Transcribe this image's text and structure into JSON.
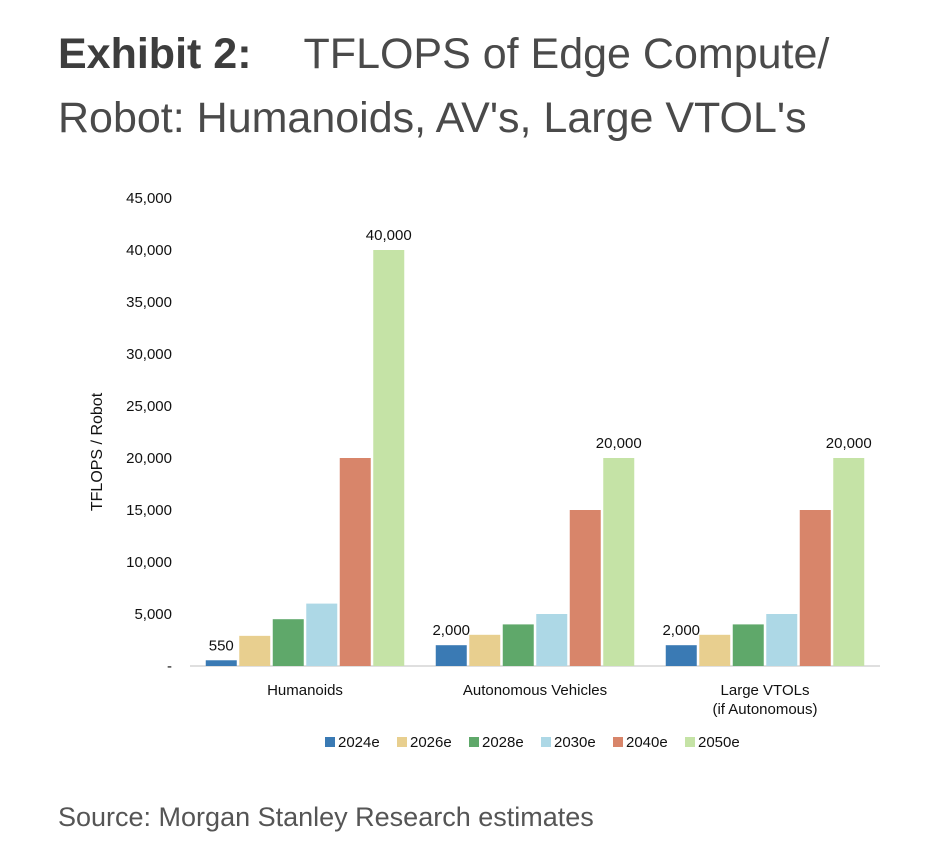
{
  "header": {
    "exhibit": "Exhibit 2:",
    "title_line1": "TFLOPS of Edge Compute/",
    "title_line2": "Robot: Humanoids, AV's, Large VTOL's"
  },
  "footer": {
    "source": "Source: Morgan Stanley Research estimates"
  },
  "chart_data": {
    "type": "bar",
    "ylabel": "TFLOPS / Robot",
    "xlabel": "",
    "ylim": [
      0,
      45000
    ],
    "yticks": [
      0,
      5000,
      10000,
      15000,
      20000,
      25000,
      30000,
      35000,
      40000,
      45000
    ],
    "ytick_labels": [
      "-",
      "5,000",
      "10,000",
      "15,000",
      "20,000",
      "25,000",
      "30,000",
      "35,000",
      "40,000",
      "45,000"
    ],
    "grid": false,
    "legend_position": "bottom",
    "categories": [
      [
        "Humanoids"
      ],
      [
        "Autonomous Vehicles"
      ],
      [
        "Large VTOLs",
        "(if Autonomous)"
      ]
    ],
    "series": [
      {
        "name": "2024e",
        "color": "#3a7ab4",
        "values": [
          550,
          2000,
          2000
        ]
      },
      {
        "name": "2026e",
        "color": "#e8cf8f",
        "values": [
          2900,
          3000,
          3000
        ]
      },
      {
        "name": "2028e",
        "color": "#5fa86a",
        "values": [
          4500,
          4000,
          4000
        ]
      },
      {
        "name": "2030e",
        "color": "#add8e6",
        "values": [
          6000,
          5000,
          5000
        ]
      },
      {
        "name": "2040e",
        "color": "#d8856a",
        "values": [
          20000,
          15000,
          15000
        ]
      },
      {
        "name": "2050e",
        "color": "#c5e3a6",
        "values": [
          40000,
          20000,
          20000
        ]
      }
    ],
    "data_labels": [
      {
        "series": 0,
        "category": 0,
        "text": "550"
      },
      {
        "series": 5,
        "category": 0,
        "text": "40,000"
      },
      {
        "series": 0,
        "category": 1,
        "text": "2,000"
      },
      {
        "series": 5,
        "category": 1,
        "text": "20,000"
      },
      {
        "series": 0,
        "category": 2,
        "text": "2,000"
      },
      {
        "series": 5,
        "category": 2,
        "text": "20,000"
      }
    ]
  }
}
